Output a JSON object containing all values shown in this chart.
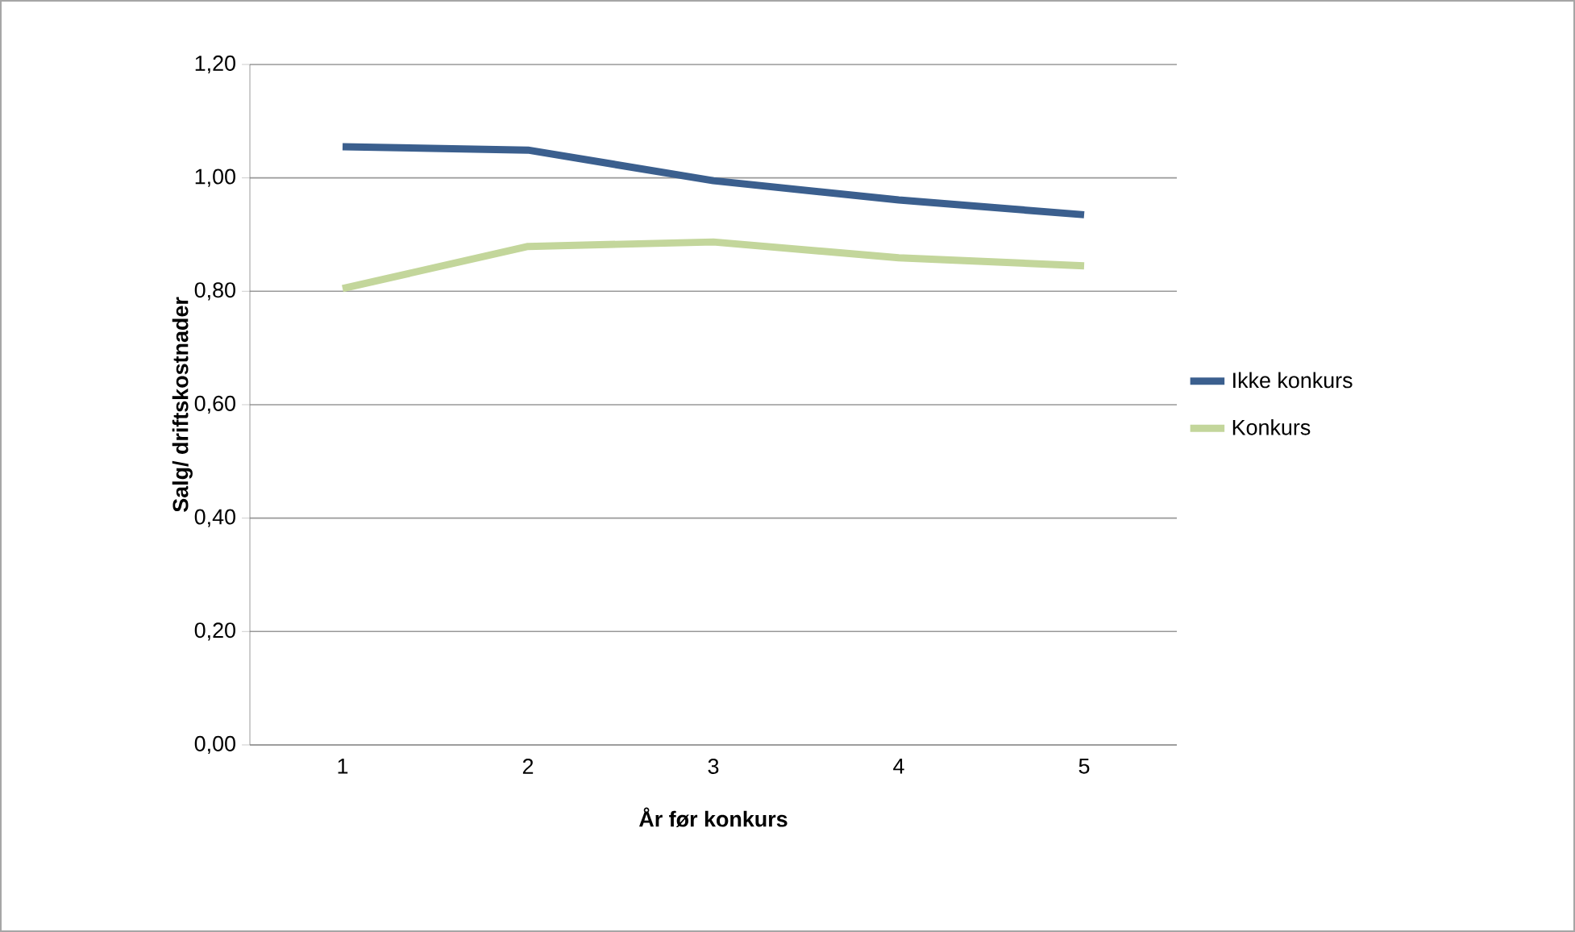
{
  "chart_data": {
    "type": "line",
    "xlabel": "År før konkurs",
    "ylabel": "Salg/ driftskostnader",
    "categories": [
      "1",
      "2",
      "3",
      "4",
      "5"
    ],
    "series": [
      {
        "name": "Ikke konkurs",
        "color": "#3b5f8e",
        "values": [
          1.055,
          1.049,
          0.995,
          0.961,
          0.935
        ]
      },
      {
        "name": "Konkurs",
        "color": "#c3d69b",
        "values": [
          0.805,
          0.879,
          0.887,
          0.859,
          0.845
        ]
      }
    ],
    "ylim": [
      0,
      1.2
    ],
    "yticks": [
      {
        "value": 0,
        "label": "0,00"
      },
      {
        "value": 0.2,
        "label": "0,20"
      },
      {
        "value": 0.4,
        "label": "0,40"
      },
      {
        "value": 0.6,
        "label": "0,60"
      },
      {
        "value": 0.8,
        "label": "0,80"
      },
      {
        "value": 1.0,
        "label": "1,00"
      },
      {
        "value": 1.2,
        "label": "1,20"
      }
    ],
    "grid": "y",
    "legend": "right",
    "marker": "none",
    "line_style": "solid"
  }
}
